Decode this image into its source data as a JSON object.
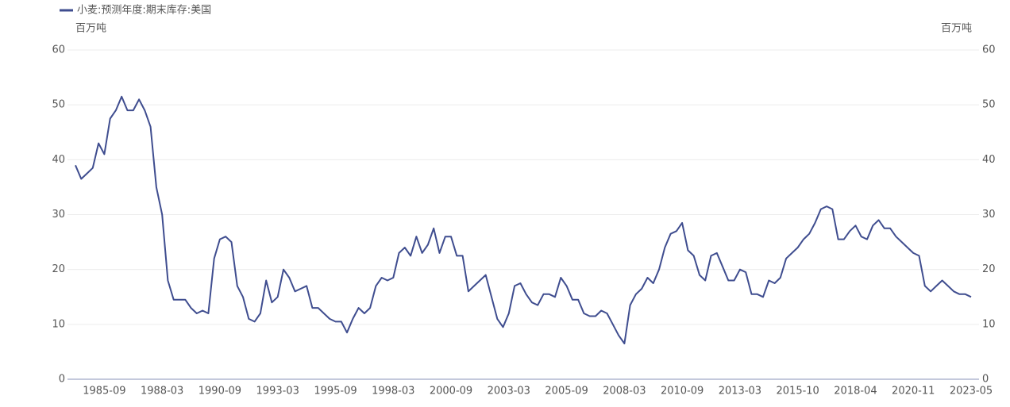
{
  "chart_data": {
    "type": "line",
    "y_label": "百万吨",
    "y2_label": "百万吨",
    "categories": [
      null,
      null,
      null,
      null,
      null,
      "1985-09",
      null,
      null,
      null,
      null,
      null,
      null,
      null,
      null,
      null,
      "1988-03",
      null,
      null,
      null,
      null,
      null,
      null,
      null,
      null,
      null,
      "1990-09",
      null,
      null,
      null,
      null,
      null,
      null,
      null,
      null,
      null,
      "1993-03",
      null,
      null,
      null,
      null,
      null,
      null,
      null,
      null,
      null,
      "1995-09",
      null,
      null,
      null,
      null,
      null,
      null,
      null,
      null,
      null,
      "1998-03",
      null,
      null,
      null,
      null,
      null,
      null,
      null,
      null,
      null,
      "2000-09",
      null,
      null,
      null,
      null,
      null,
      null,
      null,
      null,
      null,
      "2003-03",
      null,
      null,
      null,
      null,
      null,
      null,
      null,
      null,
      null,
      "2005-09",
      null,
      null,
      null,
      null,
      null,
      null,
      null,
      null,
      null,
      "2008-03",
      null,
      null,
      null,
      null,
      null,
      null,
      null,
      null,
      null,
      "2010-09",
      null,
      null,
      null,
      null,
      null,
      null,
      null,
      null,
      null,
      "2013-03",
      null,
      null,
      null,
      null,
      null,
      null,
      null,
      null,
      null,
      "2015-10",
      null,
      null,
      null,
      null,
      null,
      null,
      null,
      null,
      null,
      "2018-04",
      null,
      null,
      null,
      null,
      null,
      null,
      null,
      null,
      null,
      "2020-11",
      null,
      null,
      null,
      null,
      null,
      null,
      null,
      null,
      null,
      "2023-05"
    ],
    "series": [
      {
        "name": "小麦:预测年度:期末库存:美国",
        "color": "#3f4d8f",
        "values": [
          39,
          36.5,
          37.5,
          38.5,
          43,
          41,
          47.5,
          49,
          51.5,
          49,
          49,
          51,
          49,
          46,
          35,
          30,
          18,
          14.5,
          14.5,
          14.5,
          13,
          12,
          12.5,
          12,
          22,
          25.5,
          26,
          25,
          17,
          15,
          11,
          10.5,
          12,
          18,
          14,
          15,
          20,
          18.5,
          16,
          16.5,
          17,
          13,
          13,
          12,
          11,
          10.5,
          10.5,
          8.5,
          11,
          13,
          12,
          13,
          17,
          18.5,
          18,
          18.5,
          23,
          24,
          22.5,
          26,
          23,
          24.5,
          27.5,
          23,
          26,
          26,
          22.5,
          22.5,
          16,
          17,
          18,
          19,
          15,
          11,
          9.5,
          12,
          17,
          17.5,
          15.5,
          14,
          13.5,
          15.5,
          15.5,
          15,
          18.5,
          17,
          14.5,
          14.5,
          12,
          11.5,
          11.5,
          12.5,
          12,
          10,
          8,
          6.5,
          13.5,
          15.5,
          16.5,
          18.5,
          17.5,
          20,
          24,
          26.5,
          27,
          28.5,
          23.5,
          22.5,
          19,
          18,
          22.5,
          23,
          20.5,
          18,
          18,
          20,
          19.5,
          15.5,
          15.5,
          15,
          18,
          17.5,
          18.5,
          22,
          23,
          24,
          25.5,
          26.5,
          28.5,
          31,
          31.5,
          31,
          25.5,
          25.5,
          27,
          28,
          26,
          25.5,
          28,
          29,
          27.5,
          27.5,
          26,
          25,
          24,
          23,
          22.5,
          17,
          16,
          17,
          18,
          17,
          16,
          15.5,
          15.5,
          15
        ]
      }
    ],
    "ylim": [
      0,
      60
    ],
    "yticks": [
      0,
      10,
      20,
      30,
      40,
      50,
      60
    ],
    "y2lim": [
      0,
      60
    ],
    "y2ticks": [
      0,
      10,
      20,
      30,
      40,
      50,
      60
    ],
    "grid": true
  }
}
